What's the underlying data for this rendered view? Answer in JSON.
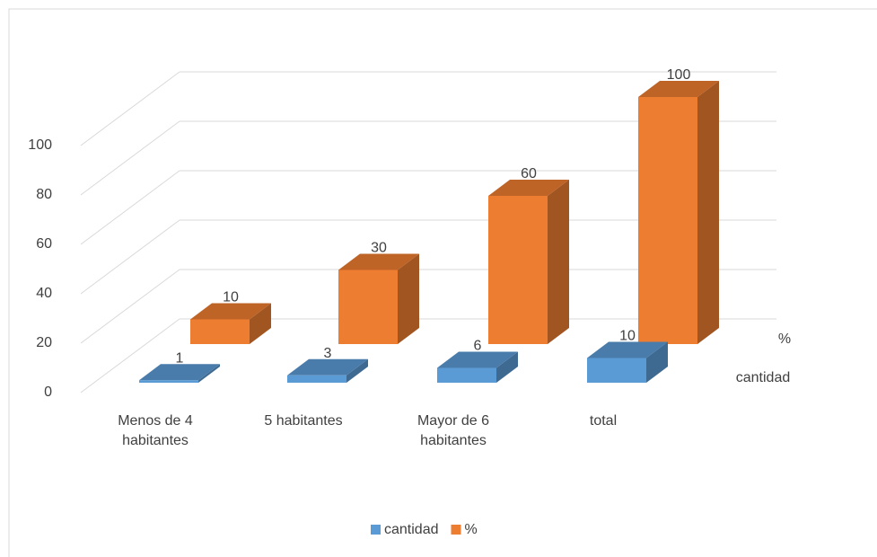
{
  "chart_data": {
    "type": "bar3d",
    "categories": [
      "Menos de 4 habitantes",
      "5 habitantes",
      "Mayor de 6 habitantes",
      "total"
    ],
    "series": [
      {
        "name": "cantidad",
        "color": "#5b9bd5",
        "values": [
          1,
          3,
          6,
          10
        ]
      },
      {
        "name": "%",
        "color": "#ed7d31",
        "values": [
          10,
          30,
          60,
          100
        ]
      }
    ],
    "ylim": [
      0,
      100
    ],
    "yticks": [
      0,
      20,
      40,
      60,
      80,
      100
    ],
    "grid": true,
    "legend": "bottom"
  }
}
